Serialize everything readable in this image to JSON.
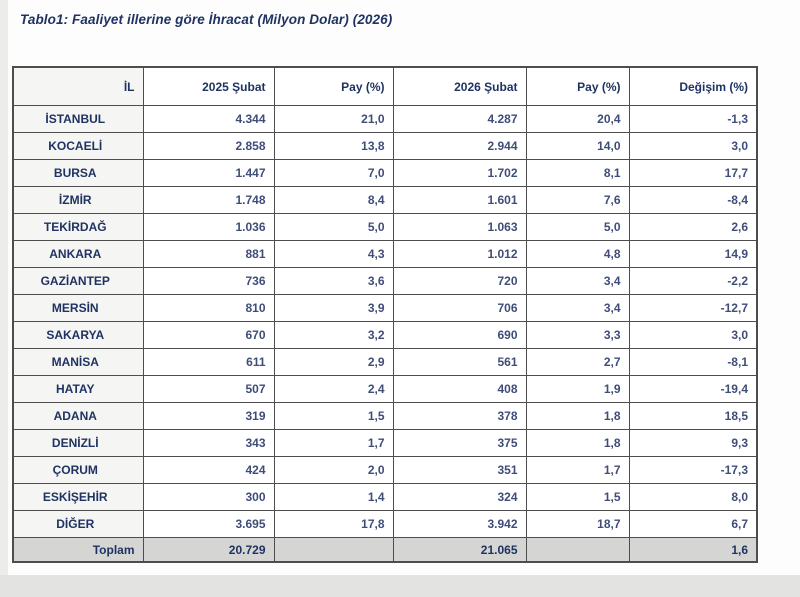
{
  "title": "Tablo1: Faaliyet illerine göre İhracat (Milyon Dolar) (2026)",
  "table": {
    "columns": {
      "il": "İL",
      "feb2025": "2025 Şubat",
      "pay2025": "Pay (%)",
      "feb2026": "2026 Şubat",
      "pay2026": "Pay (%)",
      "degisim": "Değişim (%)"
    },
    "rows": [
      {
        "il": "İSTANBUL",
        "feb2025": "4.344",
        "pay2025": "21,0",
        "feb2026": "4.287",
        "pay2026": "20,4",
        "degisim": "-1,3",
        "is_total": false
      },
      {
        "il": "KOCAELİ",
        "feb2025": "2.858",
        "pay2025": "13,8",
        "feb2026": "2.944",
        "pay2026": "14,0",
        "degisim": "3,0",
        "is_total": false
      },
      {
        "il": "BURSA",
        "feb2025": "1.447",
        "pay2025": "7,0",
        "feb2026": "1.702",
        "pay2026": "8,1",
        "degisim": "17,7",
        "is_total": false
      },
      {
        "il": "İZMİR",
        "feb2025": "1.748",
        "pay2025": "8,4",
        "feb2026": "1.601",
        "pay2026": "7,6",
        "degisim": "-8,4",
        "is_total": false
      },
      {
        "il": "TEKİRDAĞ",
        "feb2025": "1.036",
        "pay2025": "5,0",
        "feb2026": "1.063",
        "pay2026": "5,0",
        "degisim": "2,6",
        "is_total": false
      },
      {
        "il": "ANKARA",
        "feb2025": "881",
        "pay2025": "4,3",
        "feb2026": "1.012",
        "pay2026": "4,8",
        "degisim": "14,9",
        "is_total": false
      },
      {
        "il": "GAZİANTEP",
        "feb2025": "736",
        "pay2025": "3,6",
        "feb2026": "720",
        "pay2026": "3,4",
        "degisim": "-2,2",
        "is_total": false
      },
      {
        "il": "MERSİN",
        "feb2025": "810",
        "pay2025": "3,9",
        "feb2026": "706",
        "pay2026": "3,4",
        "degisim": "-12,7",
        "is_total": false
      },
      {
        "il": "SAKARYA",
        "feb2025": "670",
        "pay2025": "3,2",
        "feb2026": "690",
        "pay2026": "3,3",
        "degisim": "3,0",
        "is_total": false
      },
      {
        "il": "MANİSA",
        "feb2025": "611",
        "pay2025": "2,9",
        "feb2026": "561",
        "pay2026": "2,7",
        "degisim": "-8,1",
        "is_total": false
      },
      {
        "il": "HATAY",
        "feb2025": "507",
        "pay2025": "2,4",
        "feb2026": "408",
        "pay2026": "1,9",
        "degisim": "-19,4",
        "is_total": false
      },
      {
        "il": "ADANA",
        "feb2025": "319",
        "pay2025": "1,5",
        "feb2026": "378",
        "pay2026": "1,8",
        "degisim": "18,5",
        "is_total": false
      },
      {
        "il": "DENİZLİ",
        "feb2025": "343",
        "pay2025": "1,7",
        "feb2026": "375",
        "pay2026": "1,8",
        "degisim": "9,3",
        "is_total": false
      },
      {
        "il": "ÇORUM",
        "feb2025": "424",
        "pay2025": "2,0",
        "feb2026": "351",
        "pay2026": "1,7",
        "degisim": "-17,3",
        "is_total": false
      },
      {
        "il": "ESKİŞEHİR",
        "feb2025": "300",
        "pay2025": "1,4",
        "feb2026": "324",
        "pay2026": "1,5",
        "degisim": "8,0",
        "is_total": false
      },
      {
        "il": "DİĞER",
        "feb2025": "3.695",
        "pay2025": "17,8",
        "feb2026": "3.942",
        "pay2026": "18,7",
        "degisim": "6,7",
        "is_total": false
      },
      {
        "il": "Toplam",
        "feb2025": "20.729",
        "pay2025": "",
        "feb2026": "21.065",
        "pay2026": "",
        "degisim": "1,6",
        "is_total": true
      }
    ]
  },
  "colors": {
    "title_text": "#1f3363",
    "number_text": "#3f4d79",
    "border": "#4d4d4d",
    "first_column_bg": "#f5f5f3",
    "total_row_bg": "#d5d5d3",
    "bottom_band_bg": "#e3e3e1"
  }
}
